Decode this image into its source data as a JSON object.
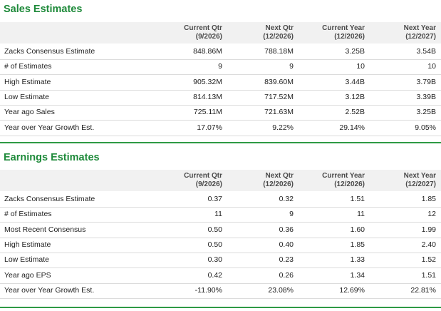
{
  "sales": {
    "title": "Sales Estimates",
    "headers": [
      {
        "line1": "Current Qtr",
        "line2": "(9/2026)"
      },
      {
        "line1": "Next Qtr",
        "line2": "(12/2026)"
      },
      {
        "line1": "Current Year",
        "line2": "(12/2026)"
      },
      {
        "line1": "Next Year",
        "line2": "(12/2027)"
      }
    ],
    "rows": [
      {
        "label": "Zacks Consensus Estimate",
        "values": [
          "848.86M",
          "788.18M",
          "3.25B",
          "3.54B"
        ]
      },
      {
        "label": "# of Estimates",
        "values": [
          "9",
          "9",
          "10",
          "10"
        ]
      },
      {
        "label": "High Estimate",
        "values": [
          "905.32M",
          "839.60M",
          "3.44B",
          "3.79B"
        ]
      },
      {
        "label": "Low Estimate",
        "values": [
          "814.13M",
          "717.52M",
          "3.12B",
          "3.39B"
        ]
      },
      {
        "label": "Year ago Sales",
        "values": [
          "725.11M",
          "721.63M",
          "2.52B",
          "3.25B"
        ]
      },
      {
        "label": "Year over Year Growth Est.",
        "values": [
          "17.07%",
          "9.22%",
          "29.14%",
          "9.05%"
        ]
      }
    ]
  },
  "earnings": {
    "title": "Earnings Estimates",
    "headers": [
      {
        "line1": "Current Qtr",
        "line2": "(9/2026)"
      },
      {
        "line1": "Next Qtr",
        "line2": "(12/2026)"
      },
      {
        "line1": "Current Year",
        "line2": "(12/2026)"
      },
      {
        "line1": "Next Year",
        "line2": "(12/2027)"
      }
    ],
    "rows": [
      {
        "label": "Zacks Consensus Estimate",
        "values": [
          "0.37",
          "0.32",
          "1.51",
          "1.85"
        ]
      },
      {
        "label": "# of Estimates",
        "values": [
          "11",
          "9",
          "11",
          "12"
        ]
      },
      {
        "label": "Most Recent Consensus",
        "values": [
          "0.50",
          "0.36",
          "1.60",
          "1.99"
        ]
      },
      {
        "label": "High Estimate",
        "values": [
          "0.50",
          "0.40",
          "1.85",
          "2.40"
        ]
      },
      {
        "label": "Low Estimate",
        "values": [
          "0.30",
          "0.23",
          "1.33",
          "1.52"
        ]
      },
      {
        "label": "Year ago EPS",
        "values": [
          "0.42",
          "0.26",
          "1.34",
          "1.51"
        ]
      },
      {
        "label": "Year over Year Growth Est.",
        "values": [
          "-11.90%",
          "23.08%",
          "12.69%",
          "22.81%"
        ]
      }
    ]
  },
  "colors": {
    "accent": "#1e8a3a",
    "header_bg": "#f1f1f1",
    "divider": "#2e9a45"
  }
}
